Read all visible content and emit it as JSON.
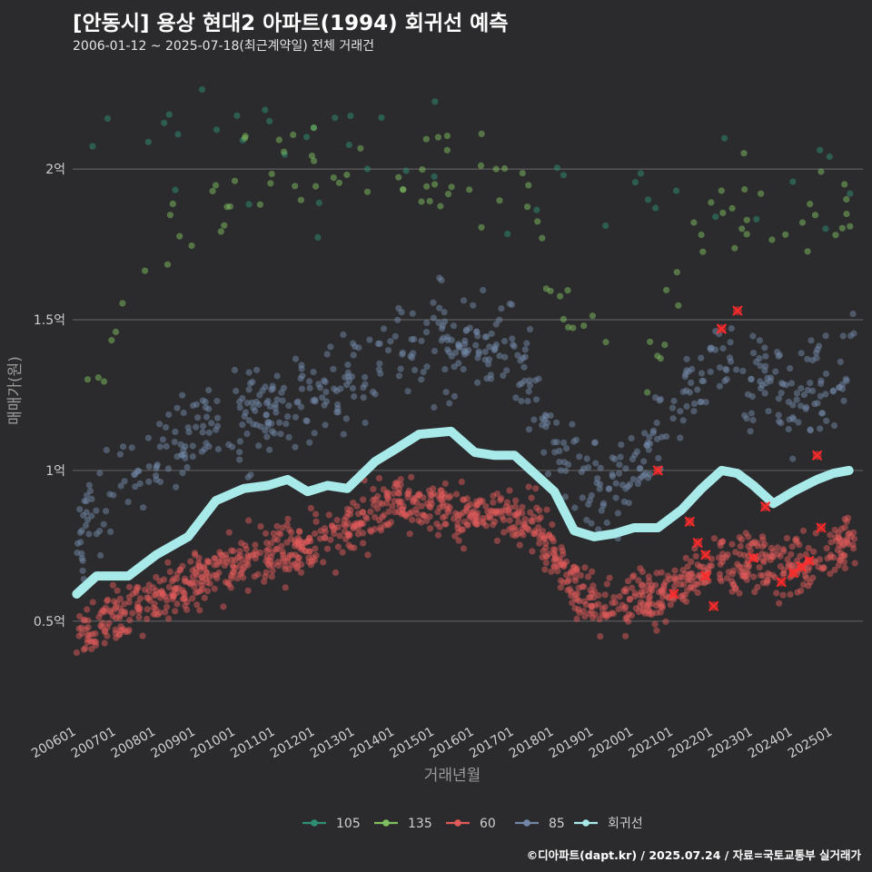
{
  "title": "[안동시] 용상 현대2 아파트(1994) 회귀선 예측",
  "subtitle": "2006-01-12 ~ 2025-07-18(최근계약일) 전체 거래건",
  "credit": "©디아파트(dapt.kr) / 2025.07.24 / 자료=국토교통부 실거래가",
  "chart_data": {
    "type": "scatter",
    "xlabel": "거래년월",
    "ylabel": "매매가(원)",
    "x_range": [
      "2005-11",
      "2025-09"
    ],
    "ylim": [
      0.18,
      2.35
    ],
    "y_unit": "억",
    "y_ticks": [
      {
        "value": 0.5,
        "label": "0.5억"
      },
      {
        "value": 1.0,
        "label": "1억"
      },
      {
        "value": 1.5,
        "label": "1.5억"
      },
      {
        "value": 2.0,
        "label": "2억"
      }
    ],
    "x_ticks": [
      "200601",
      "200701",
      "200801",
      "200901",
      "201001",
      "201101",
      "201201",
      "201301",
      "201401",
      "201501",
      "201601",
      "201701",
      "201801",
      "201901",
      "202001",
      "202101",
      "202201",
      "202301",
      "202401",
      "202501"
    ],
    "grid": "horizontal",
    "legend_position": "bottom",
    "colors": {
      "105": "#2f8f74",
      "135": "#7fbf5f",
      "60": "#e05a5a",
      "85": "#7287a8",
      "회귀선": "#a8eaea",
      "outlier": "#ff2b2b"
    },
    "series": [
      {
        "name": "105",
        "band": [
          [
            2006.0,
            2.05
          ],
          [
            2010.0,
            2.05
          ],
          [
            2015.0,
            2.05
          ],
          [
            2020.0,
            1.9
          ],
          [
            2025.5,
            1.95
          ]
        ],
        "spread": 0.28
      },
      {
        "name": "135",
        "band": [
          [
            2006.0,
            1.1
          ],
          [
            2007.0,
            1.45
          ],
          [
            2008.0,
            1.75
          ],
          [
            2010.0,
            1.9
          ],
          [
            2012.0,
            2.0
          ],
          [
            2015.0,
            2.0
          ],
          [
            2017.0,
            1.95
          ],
          [
            2019.0,
            1.4
          ],
          [
            2020.0,
            1.2
          ],
          [
            2022.0,
            1.85
          ],
          [
            2025.5,
            1.85
          ]
        ],
        "spread": 0.18
      },
      {
        "name": "60",
        "band": [
          [
            2006.0,
            0.45
          ],
          [
            2008.0,
            0.58
          ],
          [
            2010.0,
            0.7
          ],
          [
            2012.0,
            0.75
          ],
          [
            2014.0,
            0.9
          ],
          [
            2016.0,
            0.85
          ],
          [
            2017.5,
            0.82
          ],
          [
            2018.0,
            0.7
          ],
          [
            2019.0,
            0.55
          ],
          [
            2020.0,
            0.57
          ],
          [
            2021.0,
            0.6
          ],
          [
            2022.0,
            0.68
          ],
          [
            2023.0,
            0.7
          ],
          [
            2024.0,
            0.68
          ],
          [
            2025.5,
            0.77
          ]
        ],
        "spread": 0.09
      },
      {
        "name": "85",
        "band": [
          [
            2006.0,
            0.78
          ],
          [
            2007.0,
            0.92
          ],
          [
            2008.0,
            1.05
          ],
          [
            2010.0,
            1.18
          ],
          [
            2012.0,
            1.25
          ],
          [
            2014.0,
            1.4
          ],
          [
            2015.0,
            1.42
          ],
          [
            2017.0,
            1.4
          ],
          [
            2018.0,
            1.1
          ],
          [
            2019.0,
            0.95
          ],
          [
            2020.0,
            1.0
          ],
          [
            2021.0,
            1.2
          ],
          [
            2022.0,
            1.4
          ],
          [
            2023.0,
            1.3
          ],
          [
            2024.0,
            1.25
          ],
          [
            2025.5,
            1.35
          ]
        ],
        "spread": 0.16
      },
      {
        "name": "회귀선",
        "line": [
          [
            2006.0,
            0.59
          ],
          [
            2006.5,
            0.65
          ],
          [
            2007.3,
            0.65
          ],
          [
            2008.0,
            0.72
          ],
          [
            2008.8,
            0.78
          ],
          [
            2009.5,
            0.9
          ],
          [
            2010.2,
            0.94
          ],
          [
            2010.8,
            0.95
          ],
          [
            2011.3,
            0.97
          ],
          [
            2011.8,
            0.93
          ],
          [
            2012.3,
            0.95
          ],
          [
            2012.8,
            0.94
          ],
          [
            2013.5,
            1.03
          ],
          [
            2014.0,
            1.07
          ],
          [
            2014.6,
            1.12
          ],
          [
            2015.4,
            1.13
          ],
          [
            2016.0,
            1.06
          ],
          [
            2016.5,
            1.05
          ],
          [
            2017.0,
            1.05
          ],
          [
            2017.5,
            0.99
          ],
          [
            2018.0,
            0.93
          ],
          [
            2018.5,
            0.8
          ],
          [
            2019.0,
            0.78
          ],
          [
            2019.5,
            0.79
          ],
          [
            2020.0,
            0.81
          ],
          [
            2020.6,
            0.81
          ],
          [
            2021.2,
            0.87
          ],
          [
            2021.7,
            0.94
          ],
          [
            2022.2,
            1.0
          ],
          [
            2022.6,
            0.99
          ],
          [
            2023.0,
            0.95
          ],
          [
            2023.5,
            0.89
          ],
          [
            2024.0,
            0.93
          ],
          [
            2024.6,
            0.97
          ],
          [
            2025.0,
            0.99
          ],
          [
            2025.4,
            1.0
          ]
        ]
      }
    ],
    "outliers": [
      [
        2020.6,
        1.0
      ],
      [
        2021.4,
        0.83
      ],
      [
        2021.6,
        0.76
      ],
      [
        2021.8,
        0.72
      ],
      [
        2022.2,
        1.47
      ],
      [
        2022.6,
        1.53
      ],
      [
        2021.8,
        0.65
      ],
      [
        2022.0,
        0.55
      ],
      [
        2023.3,
        0.88
      ],
      [
        2023.0,
        0.71
      ],
      [
        2023.7,
        0.63
      ],
      [
        2024.0,
        0.66
      ],
      [
        2024.2,
        0.68
      ],
      [
        2024.4,
        0.7
      ],
      [
        2024.6,
        1.05
      ],
      [
        2024.7,
        0.81
      ],
      [
        2021.0,
        0.59
      ]
    ]
  },
  "legend": [
    {
      "name": "105",
      "color": "#2f8f74"
    },
    {
      "name": "135",
      "color": "#7fbf5f"
    },
    {
      "name": "60",
      "color": "#e05a5a"
    },
    {
      "name": "85",
      "color": "#7287a8"
    },
    {
      "name": "회귀선",
      "color": "#a8eaea"
    }
  ]
}
